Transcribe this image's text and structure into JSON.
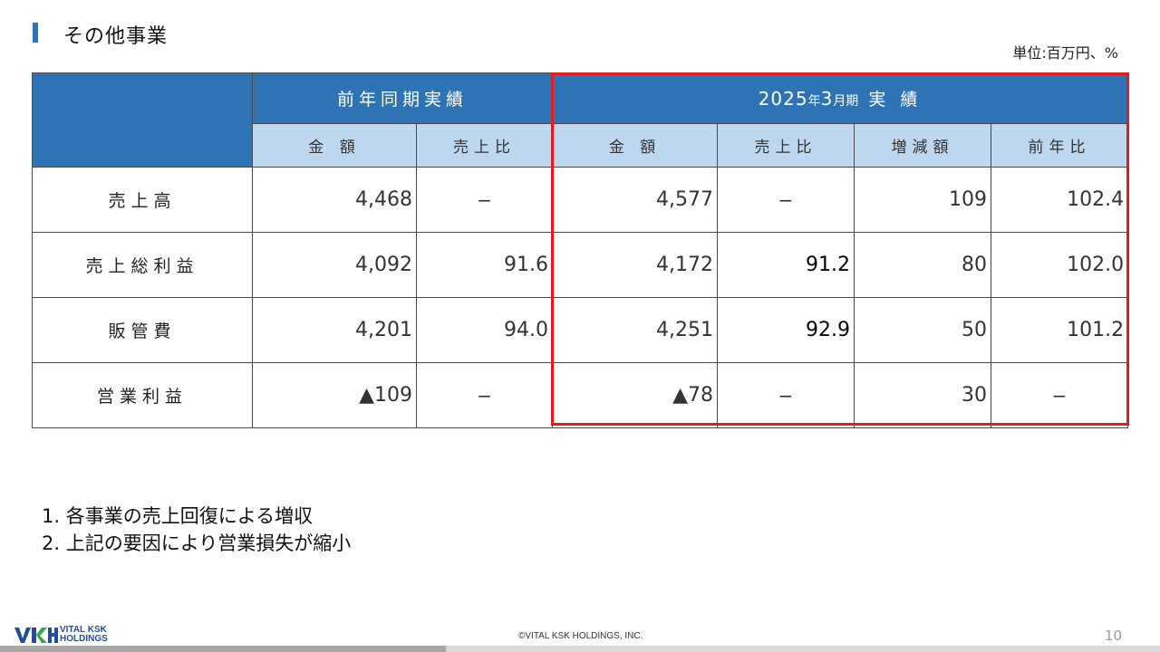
{
  "header": {
    "title": "その他事業",
    "unit": "単位:百万円、%"
  },
  "table": {
    "group_prev": "前年同期実績",
    "group_curr_year": "2025",
    "group_curr_nen": "年",
    "group_curr_month": "3",
    "group_curr_ki": "月期",
    "group_curr_suffix": "実 績",
    "col_headers": [
      "金 額",
      "売上比",
      "金 額",
      "売上比",
      "増減額",
      "前年比"
    ],
    "rows": [
      {
        "label": "売上高",
        "cells": [
          "4,468",
          "−",
          "4,577",
          "−",
          "109",
          "102.4"
        ]
      },
      {
        "label": "売上総利益",
        "cells": [
          "4,092",
          "91.6",
          "4,172",
          "91.2",
          "80",
          "102.0"
        ]
      },
      {
        "label": "販管費",
        "cells": [
          "4,201",
          "94.0",
          "4,251",
          "92.9",
          "50",
          "101.2"
        ]
      },
      {
        "label": "営業利益",
        "cells": [
          "▲109",
          "−",
          "▲78",
          "−",
          "30",
          "−"
        ]
      }
    ]
  },
  "notes": [
    "1. 各事業の売上回復による増収",
    "2. 上記の要因により営業損失が縮小"
  ],
  "footer": {
    "logo_line1": "VITAL KSK",
    "logo_line2": "HOLDINGS",
    "copyright": "©VITAL KSK HOLDINGS, INC.",
    "page_number": "10"
  },
  "colors": {
    "header_blue": "#2e74b5",
    "subheader_blue": "#bdd7ee",
    "highlight_red": "#e41a1c"
  }
}
